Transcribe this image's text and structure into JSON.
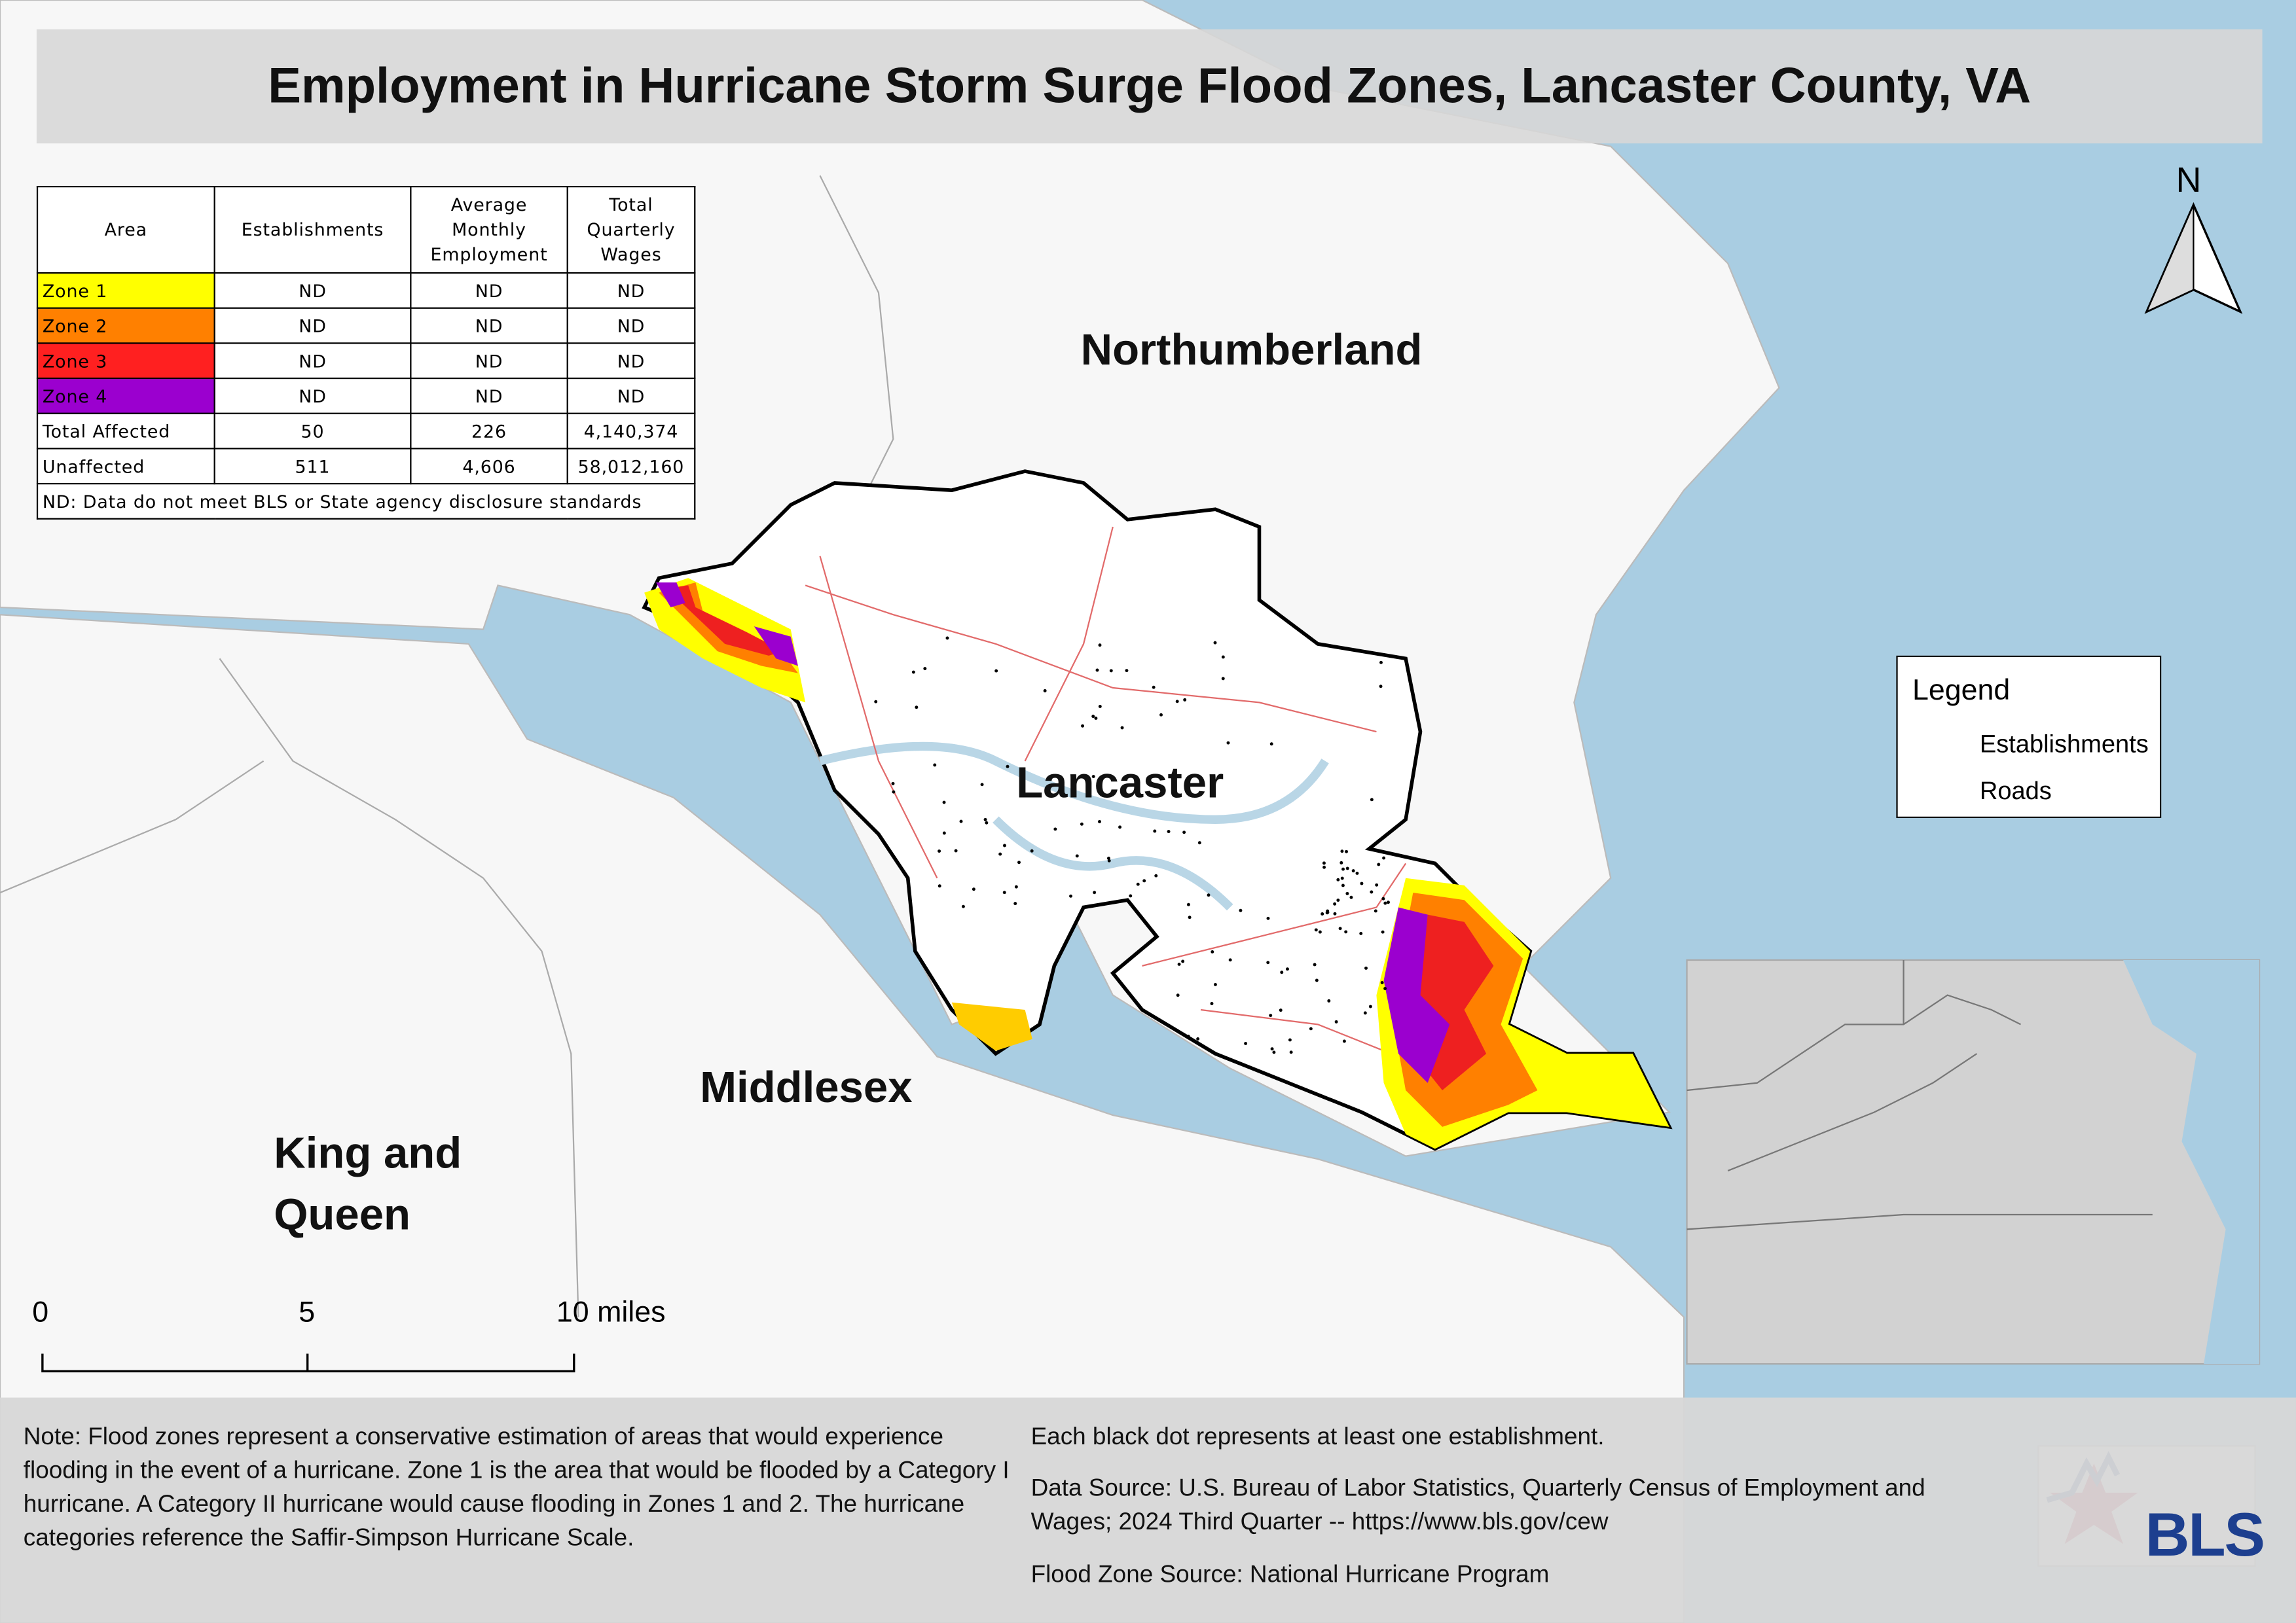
{
  "title": "Employment in Hurricane Storm Surge Flood Zones, Lancaster County, VA",
  "table": {
    "header": [
      "Area",
      "Establishments",
      "Average Monthly Employment",
      "Total Quarterly Wages"
    ],
    "rows": [
      [
        "Zone 1",
        "ND",
        "ND",
        "ND"
      ],
      [
        "Zone 2",
        "ND",
        "ND",
        "ND"
      ],
      [
        "Zone 3",
        "ND",
        "ND",
        "ND"
      ],
      [
        "Zone 4",
        "ND",
        "ND",
        "ND"
      ],
      [
        "Total Affected",
        "50",
        "226",
        "4,140,374"
      ],
      [
        "Unaffected",
        "511",
        "4,606",
        "58,012,160"
      ]
    ],
    "zone_colors": [
      "#ffff00",
      "#ff8000",
      "#ff2020",
      "#9b00cf"
    ],
    "footnote": "ND: Data do not meet BLS or State agency disclosure standards"
  },
  "map_labels": [
    "Northumberland",
    "Lancaster",
    "Middlesex",
    "King and Queen"
  ],
  "legend": {
    "title": "Legend",
    "items": [
      "Establishments",
      "Roads"
    ]
  },
  "north": "N",
  "scale_bar": [
    "0",
    "5",
    "10 miles"
  ],
  "notes": {
    "left": "Note: Flood zones represent a conservative estimation of areas that would experience flooding in the event of a hurricane. Zone 1 is the area that would be flooded by a Category I hurricane. A Category II hurricane would cause flooding in Zones 1 and 2. The hurricane categories reference the Saffir-Simpson Hurricane Scale.",
    "right": [
      "Each black dot represents at least one establishment.",
      "Data Source: U.S. Bureau of Labor Statistics, Quarterly Census of Employment and Wages; 2024 Third Quarter -- https://www.bls.gov/cew",
      "Flood Zone Source: National Hurricane Program"
    ]
  },
  "logo": "BLS"
}
